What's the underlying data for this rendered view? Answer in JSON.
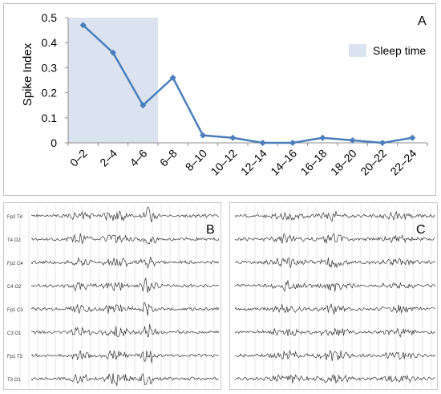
{
  "chart_data": {
    "type": "line",
    "panel_label": "A",
    "ylabel": "Spike Index",
    "ylim": [
      0,
      0.5
    ],
    "yticks": [
      "0",
      "0.1",
      "0.2",
      "0.3",
      "0.4",
      "0.5"
    ],
    "categories": [
      "0–2",
      "2–4",
      "4–6",
      "6–8",
      "8–10",
      "10–12",
      "12–14",
      "14–16",
      "16–18",
      "18–20",
      "20–22",
      "22–24"
    ],
    "values": [
      0.47,
      0.36,
      0.15,
      0.26,
      0.03,
      0.02,
      0.0,
      0.0,
      0.02,
      0.01,
      0.0,
      0.02
    ],
    "sleep_span": [
      "0–2",
      "4–6"
    ],
    "legend": {
      "label": "Sleep time",
      "position": "top-right"
    },
    "line_color": "#4a7ebb",
    "shade_color": "#dbe3f1",
    "grid": false
  },
  "eeg": {
    "panel_b_label": "B",
    "panel_c_label": "C",
    "channels": [
      "Fp2 T4",
      "T4 O2",
      "Fp2 C4",
      "C4 O2",
      "Fp1 C3",
      "C3 O1",
      "Fp1 T3",
      "T3 O1"
    ],
    "trace_color": "#333333"
  }
}
